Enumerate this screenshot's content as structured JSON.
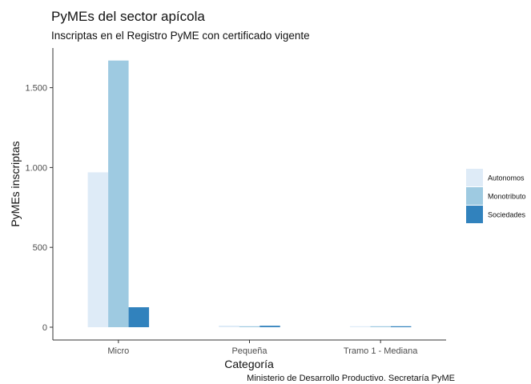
{
  "chart_data": {
    "type": "bar",
    "title": "PyMEs del sector apícola",
    "subtitle": "Inscriptas en el Registro PyME con certificado vigente",
    "caption": "Ministerio de Desarrollo Productivo. Secretaría PyME",
    "xlabel": "Categoría",
    "ylabel": "PyMEs inscriptas",
    "categories": [
      "Micro",
      "Pequeña",
      "Tramo 1 - Mediana"
    ],
    "series": [
      {
        "name": "Autonomos",
        "values": [
          970,
          10,
          3
        ],
        "color": "#deebf7"
      },
      {
        "name": "Monotributo",
        "values": [
          1670,
          6,
          2
        ],
        "color": "#9ecae1"
      },
      {
        "name": "Sociedades",
        "values": [
          125,
          9,
          4
        ],
        "color": "#3182bd"
      }
    ],
    "ylim": [
      0,
      1700
    ],
    "yticks": [
      0,
      500,
      1000,
      1500
    ],
    "ytick_labels": [
      "0",
      "500",
      "1.000",
      "1.500"
    ],
    "grid": false,
    "legend_position": "right"
  }
}
